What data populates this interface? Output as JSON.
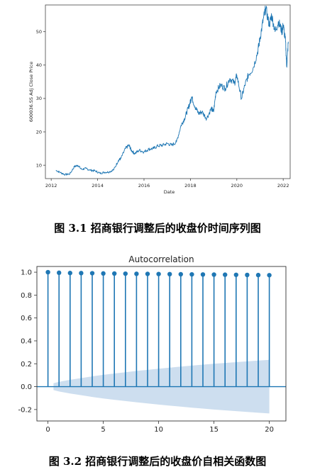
{
  "captions": {
    "fig1": "图 3.1  招商银行调整后的收盘价时间序列图",
    "fig2": "图 3.2  招商银行调整后的收盘价自相关函数图"
  },
  "chart_data": [
    {
      "type": "line",
      "title": "",
      "xlabel": "Date",
      "ylabel": "600036.SS Adj Close Price",
      "xlim": [
        2011.75,
        2022.3
      ],
      "ylim": [
        6,
        58
      ],
      "xticks": [
        "2012",
        "2014",
        "2016",
        "2018",
        "2020",
        "2022"
      ],
      "yticks": [
        10,
        20,
        30,
        40,
        50
      ],
      "color": "#1f77b4",
      "series": [
        {
          "x": [
            2012.2,
            2012.4,
            2012.6,
            2012.8,
            2013.0,
            2013.15,
            2013.3,
            2013.5,
            2013.7,
            2013.9,
            2014.1,
            2014.3,
            2014.5,
            2014.7,
            2014.9,
            2015.0,
            2015.2,
            2015.35,
            2015.45,
            2015.6,
            2015.8,
            2016.0,
            2016.2,
            2016.4,
            2016.6,
            2016.8,
            2017.0,
            2017.2,
            2017.4,
            2017.6,
            2017.75,
            2017.9,
            2018.0,
            2018.05,
            2018.2,
            2018.35,
            2018.5,
            2018.7,
            2018.9,
            2019.0,
            2019.1,
            2019.3,
            2019.5,
            2019.7,
            2019.9,
            2020.0,
            2020.2,
            2020.35,
            2020.5,
            2020.7,
            2020.9,
            2021.0,
            2021.15,
            2021.25,
            2021.4,
            2021.5,
            2021.65,
            2021.8,
            2021.95,
            2022.0,
            2022.1,
            2022.15,
            2022.22
          ],
          "y": [
            8.5,
            7.8,
            7.2,
            7.4,
            9.6,
            10.0,
            8.8,
            9.0,
            8.5,
            8.3,
            7.6,
            7.9,
            8.0,
            8.7,
            11.5,
            12.0,
            15.0,
            16.0,
            14.5,
            13.5,
            14.5,
            14.0,
            14.8,
            15.0,
            15.8,
            16.0,
            16.5,
            16.0,
            17.0,
            22.0,
            24.0,
            27.0,
            29.0,
            30.5,
            27.5,
            25.5,
            26.0,
            24.0,
            27.0,
            26.0,
            32.0,
            34.0,
            33.0,
            36.0,
            34.5,
            37.0,
            30.0,
            34.0,
            37.0,
            39.0,
            44.0,
            48.0,
            54.0,
            57.0,
            52.0,
            55.0,
            50.0,
            53.0,
            50.0,
            52.0,
            47.0,
            39.5,
            47.0
          ]
        }
      ]
    },
    {
      "type": "scatter",
      "title": "Autocorrelation",
      "xlabel": "",
      "ylabel": "",
      "xlim": [
        -1,
        21.5
      ],
      "ylim": [
        -0.3,
        1.05
      ],
      "xticks": [
        0,
        5,
        10,
        15,
        20
      ],
      "yticks": [
        "1.0",
        "0.8",
        "0.6",
        "0.4",
        "0.2",
        "0.0",
        "-0.2"
      ],
      "lags": [
        0,
        1,
        2,
        3,
        4,
        5,
        6,
        7,
        8,
        9,
        10,
        11,
        12,
        13,
        14,
        15,
        16,
        17,
        18,
        19,
        20
      ],
      "values": [
        1.0,
        0.995,
        0.993,
        0.992,
        0.991,
        0.989,
        0.988,
        0.987,
        0.986,
        0.985,
        0.984,
        0.983,
        0.982,
        0.981,
        0.98,
        0.979,
        0.978,
        0.977,
        0.976,
        0.975,
        0.974
      ],
      "conf_upper": [
        0.03,
        0.042,
        0.06,
        0.075,
        0.09,
        0.103,
        0.115,
        0.126,
        0.137,
        0.147,
        0.157,
        0.166,
        0.175,
        0.184,
        0.192,
        0.2,
        0.207,
        0.214,
        0.221,
        0.228,
        0.234
      ],
      "color": "#1f77b4",
      "band_color": "#c4d8ec"
    }
  ]
}
